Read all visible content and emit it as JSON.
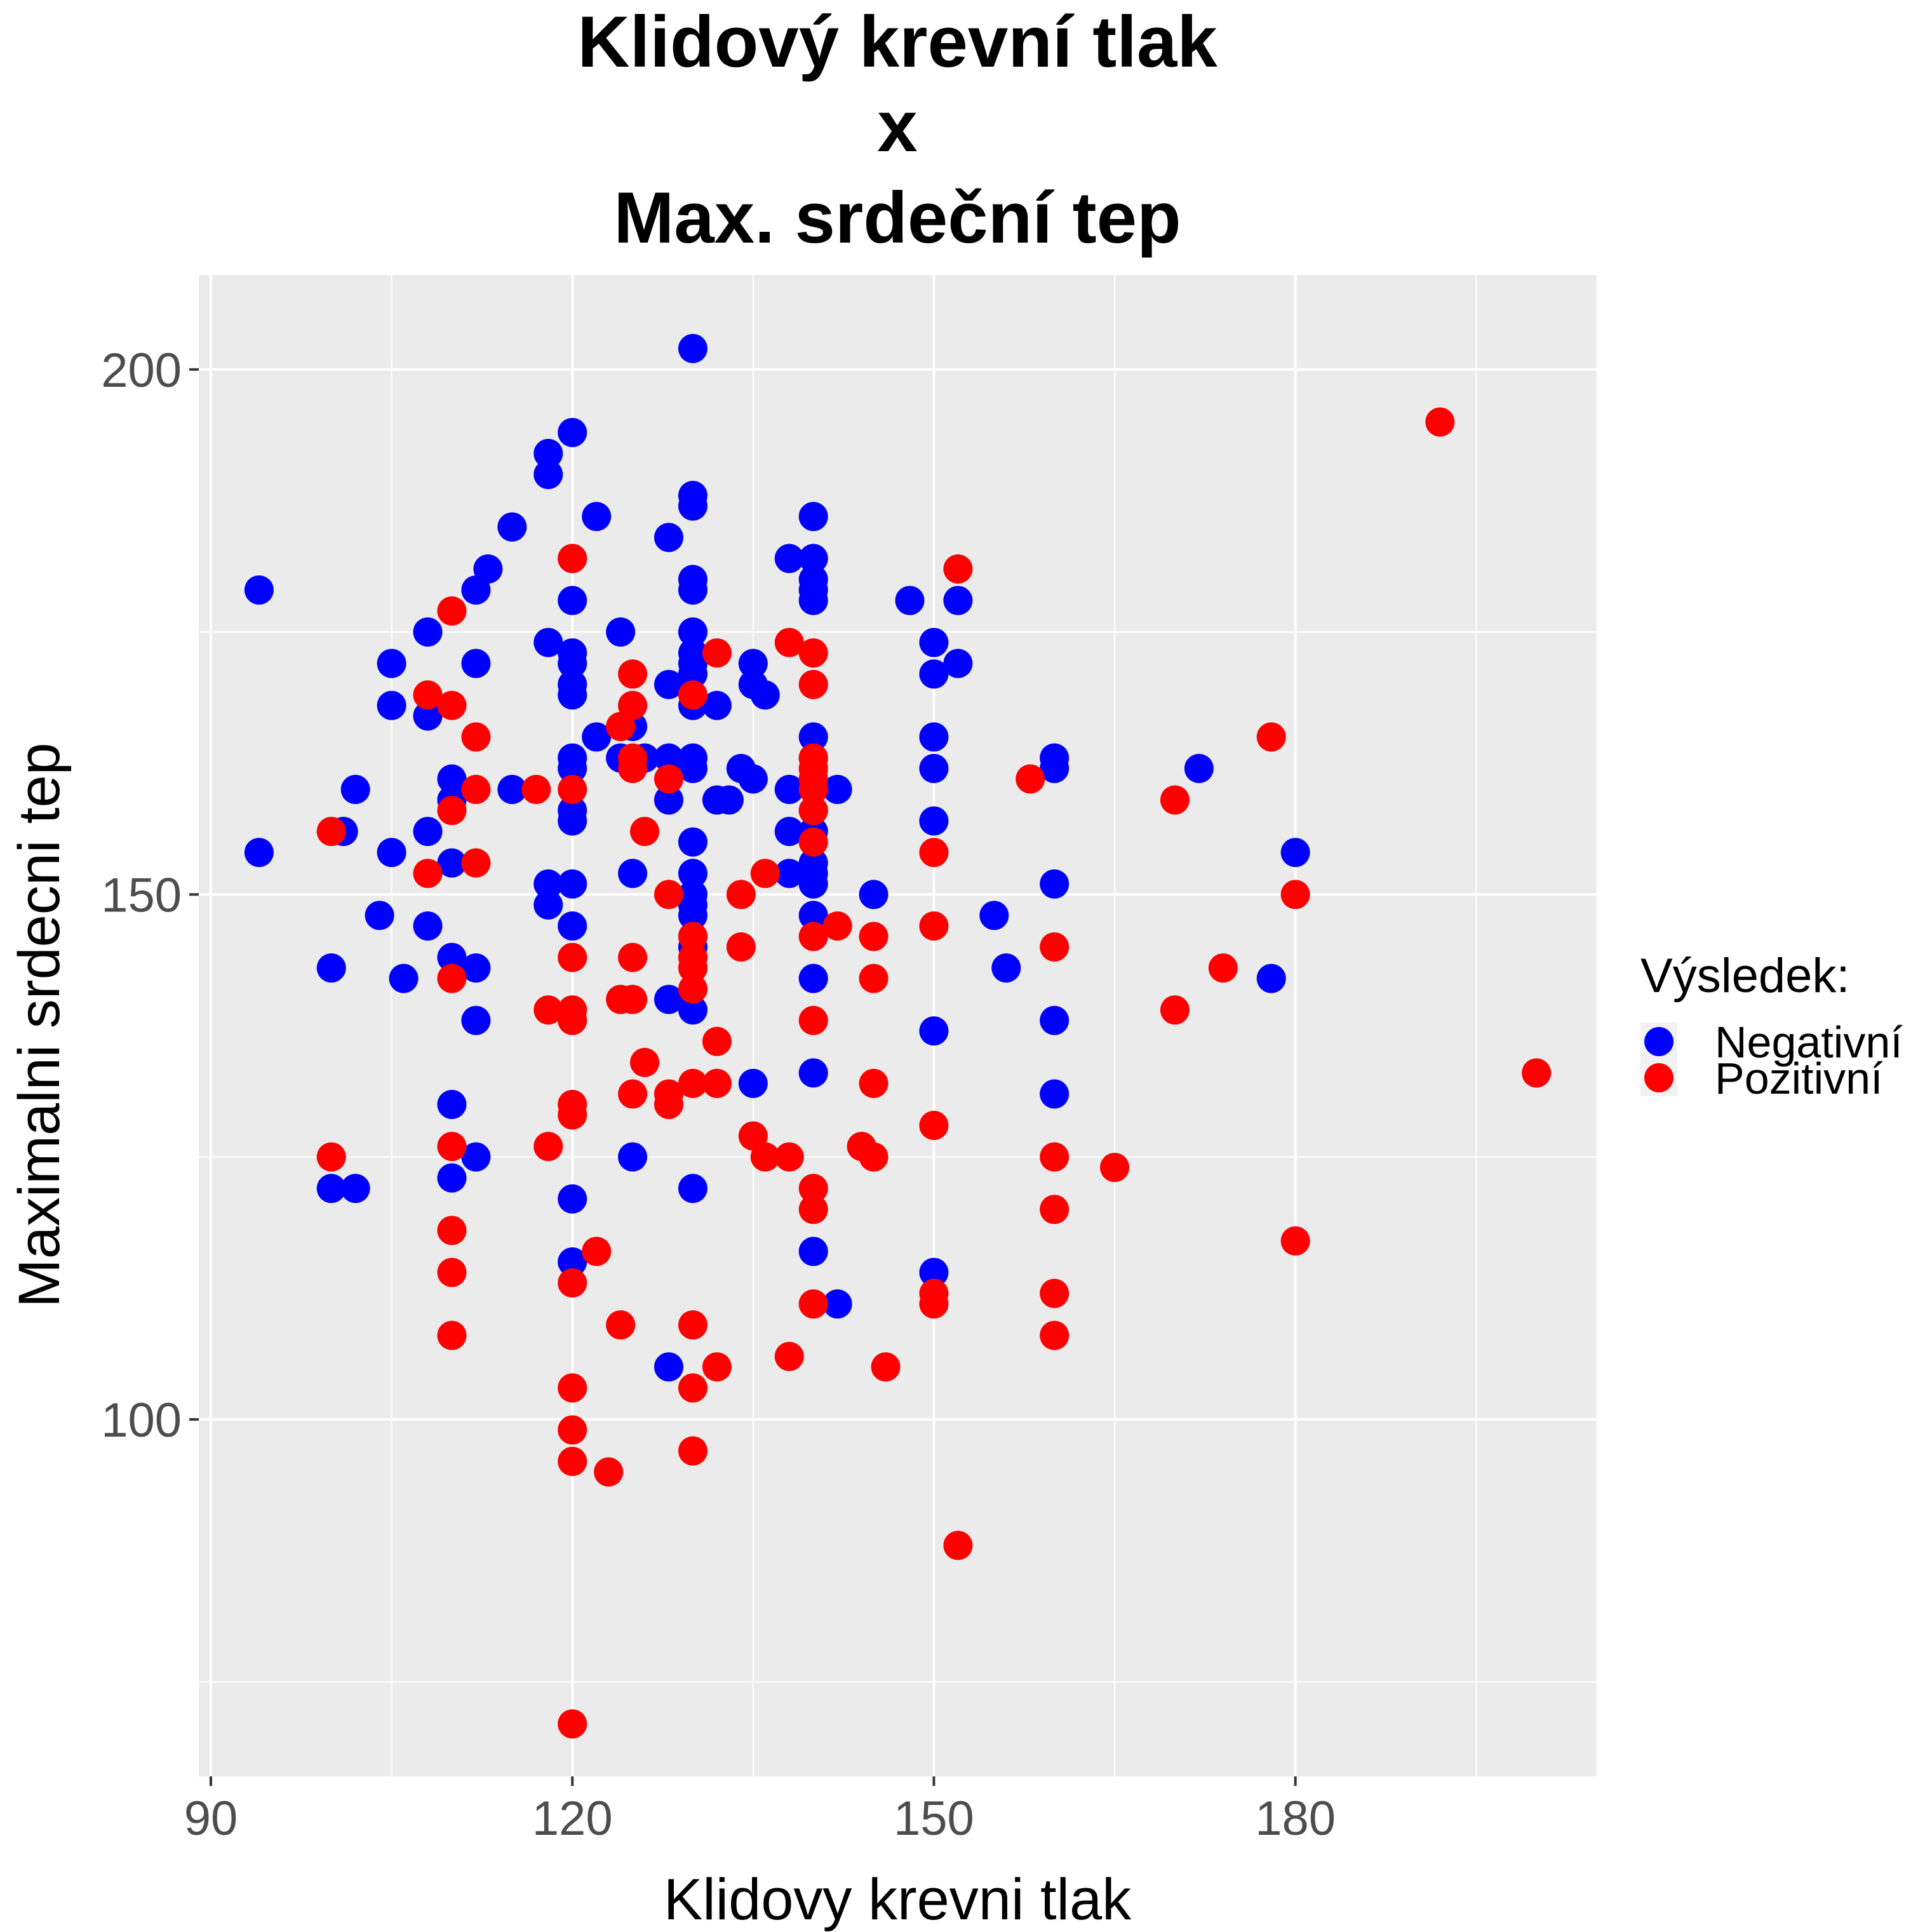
{
  "chart_data": {
    "type": "scatter",
    "title_lines": [
      "Klidový krevní tlak",
      "x",
      "Max. srdeční tep"
    ],
    "xlabel": "Klidovy krevni tlak",
    "ylabel": "Maximalni srdecni tep",
    "xlim": [
      89,
      205
    ],
    "ylim": [
      66,
      209
    ],
    "x_ticks": [
      90,
      120,
      150,
      180
    ],
    "y_ticks": [
      100,
      150,
      200
    ],
    "grid": true,
    "legend": {
      "title": "Výsledek:",
      "position": "right",
      "entries": [
        {
          "label": "Negativní",
          "color": "#0000ff"
        },
        {
          "label": "Pozitivní",
          "color": "#ff0000"
        }
      ]
    },
    "series": [
      {
        "name": "Negativní",
        "color": "#0000ff",
        "points": [
          [
            130,
            202
          ],
          [
            120,
            194
          ],
          [
            118,
            192
          ],
          [
            118,
            190
          ],
          [
            130,
            188
          ],
          [
            130,
            187
          ],
          [
            140,
            186
          ],
          [
            122,
            186
          ],
          [
            115,
            185
          ],
          [
            128,
            184
          ],
          [
            120,
            182
          ],
          [
            138,
            182
          ],
          [
            140,
            182
          ],
          [
            113,
            181
          ],
          [
            140,
            180
          ],
          [
            130,
            180
          ],
          [
            94,
            179
          ],
          [
            112,
            179
          ],
          [
            130,
            179
          ],
          [
            140,
            179
          ],
          [
            120,
            178
          ],
          [
            140,
            178
          ],
          [
            148,
            178
          ],
          [
            152,
            178
          ],
          [
            108,
            175
          ],
          [
            124,
            175
          ],
          [
            130,
            175
          ],
          [
            118,
            174
          ],
          [
            150,
            174
          ],
          [
            120,
            173
          ],
          [
            130,
            173
          ],
          [
            105,
            172
          ],
          [
            112,
            172
          ],
          [
            120,
            172
          ],
          [
            130,
            172
          ],
          [
            135,
            172
          ],
          [
            152,
            172
          ],
          [
            130,
            171
          ],
          [
            150,
            171
          ],
          [
            128,
            170
          ],
          [
            120,
            170
          ],
          [
            135,
            170
          ],
          [
            120,
            169
          ],
          [
            136,
            169
          ],
          [
            105,
            168
          ],
          [
            130,
            168
          ],
          [
            132,
            168
          ],
          [
            108,
            167
          ],
          [
            125,
            166
          ],
          [
            122,
            165
          ],
          [
            140,
            165
          ],
          [
            150,
            165
          ],
          [
            124,
            163
          ],
          [
            126,
            163
          ],
          [
            120,
            163
          ],
          [
            128,
            163
          ],
          [
            130,
            163
          ],
          [
            140,
            163
          ],
          [
            160,
            163
          ],
          [
            120,
            162
          ],
          [
            130,
            162
          ],
          [
            134,
            162
          ],
          [
            150,
            162
          ],
          [
            160,
            162
          ],
          [
            172,
            162
          ],
          [
            110,
            161
          ],
          [
            135,
            161
          ],
          [
            102,
            160
          ],
          [
            115,
            160
          ],
          [
            138,
            160
          ],
          [
            142,
            160
          ],
          [
            110,
            159
          ],
          [
            128,
            159
          ],
          [
            133,
            159
          ],
          [
            120,
            158
          ],
          [
            132,
            159
          ],
          [
            140,
            158
          ],
          [
            120,
            157
          ],
          [
            150,
            157
          ],
          [
            101,
            156
          ],
          [
            108,
            156
          ],
          [
            138,
            156
          ],
          [
            140,
            156
          ],
          [
            130,
            155
          ],
          [
            94,
            154
          ],
          [
            105,
            154
          ],
          [
            180,
            154
          ],
          [
            110,
            153
          ],
          [
            140,
            153
          ],
          [
            125,
            152
          ],
          [
            130,
            152
          ],
          [
            138,
            152
          ],
          [
            140,
            152
          ],
          [
            118,
            151
          ],
          [
            120,
            151
          ],
          [
            140,
            151
          ],
          [
            160,
            151
          ],
          [
            130,
            150
          ],
          [
            145,
            150
          ],
          [
            130,
            149
          ],
          [
            118,
            149
          ],
          [
            104,
            148
          ],
          [
            130,
            148
          ],
          [
            140,
            148
          ],
          [
            155,
            148
          ],
          [
            108,
            147
          ],
          [
            120,
            147
          ],
          [
            130,
            146
          ],
          [
            130,
            145
          ],
          [
            110,
            144
          ],
          [
            100,
            143
          ],
          [
            112,
            143
          ],
          [
            156,
            143
          ],
          [
            106,
            142
          ],
          [
            140,
            142
          ],
          [
            178,
            142
          ],
          [
            128,
            140
          ],
          [
            130,
            139
          ],
          [
            112,
            138
          ],
          [
            160,
            138
          ],
          [
            150,
            137
          ],
          [
            140,
            133
          ],
          [
            135,
            132
          ],
          [
            160,
            131
          ],
          [
            110,
            130
          ],
          [
            112,
            125
          ],
          [
            125,
            125
          ],
          [
            110,
            123
          ],
          [
            100,
            122
          ],
          [
            102,
            122
          ],
          [
            130,
            122
          ],
          [
            120,
            121
          ],
          [
            140,
            116
          ],
          [
            120,
            115
          ],
          [
            150,
            114
          ],
          [
            142,
            111
          ],
          [
            128,
            105
          ]
        ]
      },
      {
        "name": "Pozitivní",
        "color": "#ff0000",
        "points": [
          [
            192,
            195
          ],
          [
            120,
            182
          ],
          [
            152,
            181
          ],
          [
            110,
            177
          ],
          [
            138,
            174
          ],
          [
            132,
            173
          ],
          [
            140,
            173
          ],
          [
            125,
            171
          ],
          [
            140,
            170
          ],
          [
            108,
            169
          ],
          [
            130,
            169
          ],
          [
            110,
            168
          ],
          [
            125,
            168
          ],
          [
            124,
            166
          ],
          [
            112,
            165
          ],
          [
            178,
            165
          ],
          [
            125,
            163
          ],
          [
            140,
            163
          ],
          [
            125,
            162
          ],
          [
            140,
            162
          ],
          [
            128,
            161
          ],
          [
            158,
            161
          ],
          [
            140,
            161
          ],
          [
            112,
            160
          ],
          [
            120,
            160
          ],
          [
            117,
            160
          ],
          [
            140,
            160
          ],
          [
            170,
            159
          ],
          [
            110,
            158
          ],
          [
            140,
            158
          ],
          [
            100,
            156
          ],
          [
            126,
            156
          ],
          [
            140,
            155
          ],
          [
            150,
            154
          ],
          [
            108,
            152
          ],
          [
            112,
            153
          ],
          [
            136,
            152
          ],
          [
            128,
            150
          ],
          [
            134,
            150
          ],
          [
            180,
            150
          ],
          [
            142,
            147
          ],
          [
            150,
            147
          ],
          [
            130,
            146
          ],
          [
            140,
            146
          ],
          [
            145,
            146
          ],
          [
            134,
            145
          ],
          [
            160,
            145
          ],
          [
            120,
            144
          ],
          [
            125,
            144
          ],
          [
            130,
            144
          ],
          [
            130,
            143
          ],
          [
            174,
            143
          ],
          [
            110,
            142
          ],
          [
            130,
            141
          ],
          [
            145,
            142
          ],
          [
            124,
            140
          ],
          [
            125,
            140
          ],
          [
            118,
            139
          ],
          [
            120,
            139
          ],
          [
            170,
            139
          ],
          [
            120,
            138
          ],
          [
            140,
            138
          ],
          [
            132,
            136
          ],
          [
            126,
            134
          ],
          [
            130,
            132
          ],
          [
            132,
            132
          ],
          [
            145,
            132
          ],
          [
            125,
            131
          ],
          [
            128,
            131
          ],
          [
            128,
            130
          ],
          [
            120,
            130
          ],
          [
            120,
            129
          ],
          [
            150,
            128
          ],
          [
            135,
            127
          ],
          [
            110,
            126
          ],
          [
            118,
            126
          ],
          [
            144,
            126
          ],
          [
            100,
            125
          ],
          [
            136,
            125
          ],
          [
            138,
            125
          ],
          [
            145,
            125
          ],
          [
            160,
            125
          ],
          [
            165,
            124
          ],
          [
            140,
            122
          ],
          [
            140,
            120
          ],
          [
            160,
            120
          ],
          [
            110,
            118
          ],
          [
            180,
            117
          ],
          [
            122,
            116
          ],
          [
            110,
            114
          ],
          [
            120,
            113
          ],
          [
            150,
            112
          ],
          [
            160,
            112
          ],
          [
            140,
            111
          ],
          [
            150,
            111
          ],
          [
            124,
            109
          ],
          [
            130,
            109
          ],
          [
            110,
            108
          ],
          [
            160,
            108
          ],
          [
            138,
            106
          ],
          [
            132,
            105
          ],
          [
            146,
            105
          ],
          [
            120,
            103
          ],
          [
            130,
            103
          ],
          [
            120,
            99
          ],
          [
            130,
            97
          ],
          [
            120,
            96
          ],
          [
            123,
            95
          ],
          [
            152,
            88
          ],
          [
            120,
            71
          ],
          [
            200,
            133
          ]
        ]
      }
    ]
  }
}
